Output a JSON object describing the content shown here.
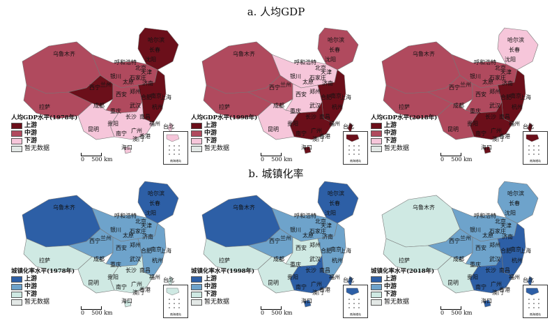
{
  "section_a": {
    "title": "a. 人均GDP"
  },
  "section_b": {
    "title": "b. 城镇化率"
  },
  "legend_labels": {
    "upper": "上游",
    "middle": "中游",
    "lower": "下游",
    "nodata": "暂无数据"
  },
  "scale_label": "0    500 km",
  "inset_label": "南海诸岛",
  "colors": {
    "gdp": {
      "upper": "#6b0f1a",
      "middle": "#b04a5e",
      "lower": "#f6c6da",
      "nodata": "#e3e8e6"
    },
    "urban": {
      "upper": "#2d5fa6",
      "middle": "#6ea3cb",
      "lower": "#cfe9e3",
      "nodata": "#e3e8e6"
    }
  },
  "cities": [
    "乌鲁木齐",
    "哈尔滨",
    "长春",
    "沈阳",
    "呼和浩特",
    "北京",
    "天津",
    "银川",
    "石家庄",
    "太原",
    "济南",
    "兰州",
    "西宁",
    "郑州",
    "西安",
    "合肥",
    "南京",
    "上海",
    "成都",
    "武汉",
    "杭州",
    "重庆",
    "长沙",
    "南昌",
    "福州",
    "贵阳",
    "昆明",
    "广州",
    "南宁",
    "台北",
    "香港",
    "澳门",
    "海口",
    "拉萨"
  ],
  "panels": [
    {
      "legend_title": "人均GDP水平(1978年)",
      "scheme": "gdp",
      "levels": {
        "west": "middle",
        "tibet": "middle",
        "qinghai": "upper",
        "ne": "upper",
        "north": "middle",
        "central": "middle",
        "east": "upper",
        "south": "lower",
        "sw": "lower"
      }
    },
    {
      "legend_title": "人均GDP水平(1998年)",
      "scheme": "gdp",
      "levels": {
        "west": "middle",
        "tibet": "middle",
        "qinghai": "middle",
        "ne": "middle",
        "north": "lower",
        "central": "lower",
        "east": "upper",
        "south": "upper",
        "sw": "lower"
      }
    },
    {
      "legend_title": "人均GDP水平(2018年)",
      "scheme": "gdp",
      "levels": {
        "west": "middle",
        "tibet": "middle",
        "qinghai": "middle",
        "ne": "lower",
        "north": "middle",
        "central": "middle",
        "east": "upper",
        "south": "upper",
        "sw": "middle"
      }
    },
    {
      "legend_title": "城镇化率水平(1978年)",
      "scheme": "urban",
      "levels": {
        "west": "upper",
        "tibet": "lower",
        "qinghai": "middle",
        "ne": "upper",
        "north": "middle",
        "central": "middle",
        "east": "middle",
        "south": "lower",
        "sw": "lower"
      }
    },
    {
      "legend_title": "城镇化率水平(1998年)",
      "scheme": "urban",
      "levels": {
        "west": "upper",
        "tibet": "lower",
        "qinghai": "middle",
        "ne": "upper",
        "north": "middle",
        "central": "lower",
        "east": "middle",
        "south": "upper",
        "sw": "lower"
      }
    },
    {
      "legend_title": "城镇化率水平(2018年)",
      "scheme": "urban",
      "levels": {
        "west": "lower",
        "tibet": "lower",
        "qinghai": "middle",
        "ne": "middle",
        "north": "middle",
        "central": "middle",
        "east": "upper",
        "south": "upper",
        "sw": "lower"
      }
    }
  ]
}
